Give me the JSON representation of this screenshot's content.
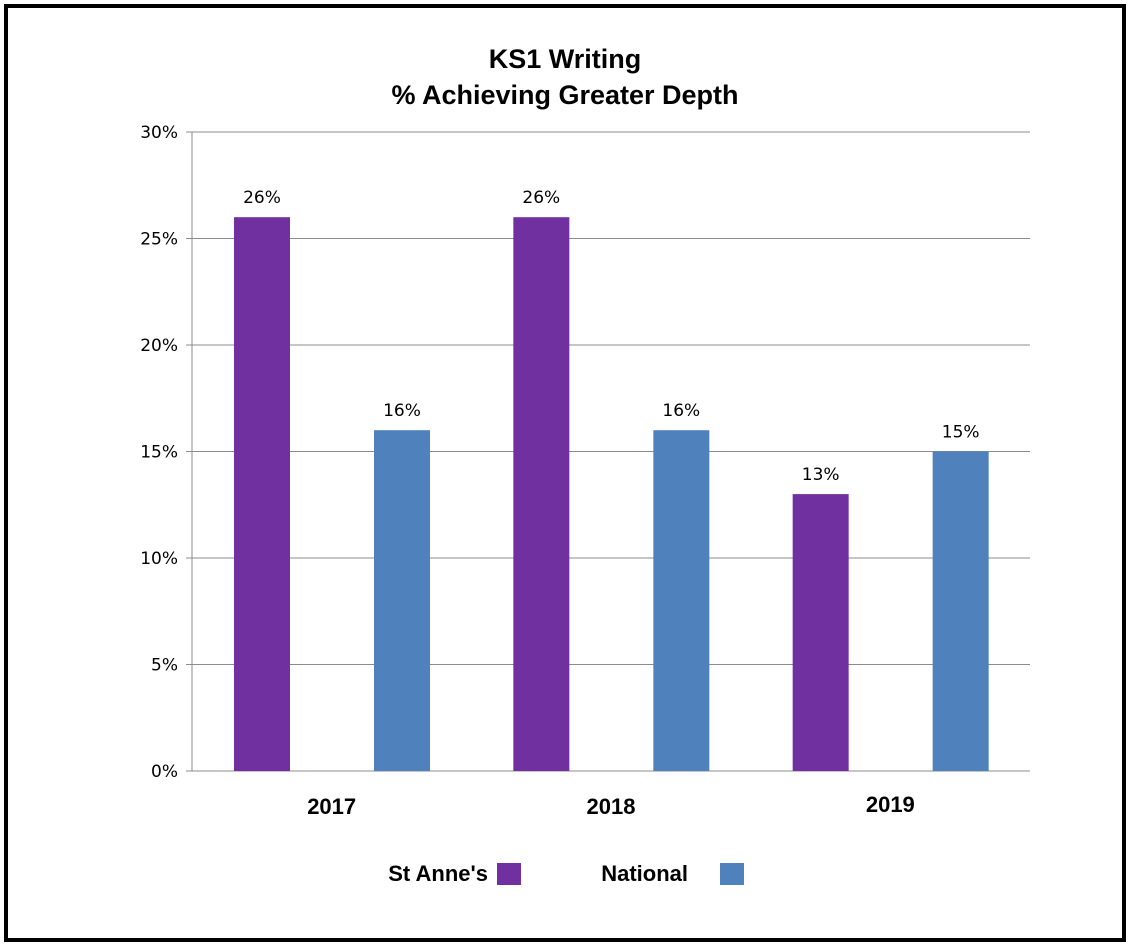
{
  "chart_data": {
    "type": "bar",
    "title": [
      "KS1 Writing",
      "% Achieving Greater Depth"
    ],
    "categories": [
      "2017",
      "2018",
      "2019"
    ],
    "series": [
      {
        "name": "St Anne's",
        "color": "#7030a0",
        "values": [
          26,
          26,
          13
        ],
        "labels": [
          "26%",
          "26%",
          "13%"
        ]
      },
      {
        "name": "National",
        "color": "#4f81bd",
        "values": [
          16,
          16,
          15
        ],
        "labels": [
          "16%",
          "16%",
          "15%"
        ]
      }
    ],
    "y_ticks": [
      0,
      5,
      10,
      15,
      20,
      25,
      30
    ],
    "y_tick_labels": [
      "0%",
      "5%",
      "10%",
      "15%",
      "20%",
      "25%",
      "30%"
    ],
    "ylim": [
      0,
      30
    ],
    "grid": true,
    "legend_position": "bottom"
  }
}
